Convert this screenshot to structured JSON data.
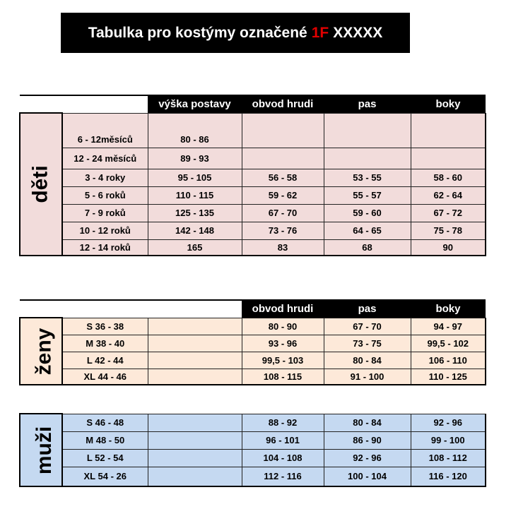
{
  "title": {
    "prefix": "Tabulka pro kostýmy označené",
    "code": "1F",
    "suffix": "XXXXX",
    "code_color": "#e00000"
  },
  "headers": {
    "height": "výška postavy",
    "chest": "obvod hrudi",
    "waist": "pas",
    "hips": "boky"
  },
  "deti": {
    "label": "děti",
    "color": "#f2dcdb",
    "rows": [
      [
        "6 - 12měsíců",
        "80 - 86",
        "",
        "",
        ""
      ],
      [
        "12 - 24 měsíců",
        "89 - 93",
        "",
        "",
        ""
      ],
      [
        "3 - 4 roky",
        "95 - 105",
        "56 - 58",
        "53 - 55",
        "58 - 60"
      ],
      [
        "5 - 6 roků",
        "110 - 115",
        "59 - 62",
        "55 - 57",
        "62 - 64"
      ],
      [
        "7 - 9 roků",
        "125 - 135",
        "67 - 70",
        "59 - 60",
        "67 - 72"
      ],
      [
        "10 - 12 roků",
        "142 - 148",
        "73 - 76",
        "64 - 65",
        "75 - 78"
      ],
      [
        "12 - 14 roků",
        "165",
        "83",
        "68",
        "90"
      ]
    ]
  },
  "zeny": {
    "label": "ženy",
    "color": "#fde9d9",
    "rows": [
      [
        "S 36 - 38",
        "",
        "80 - 90",
        "67 - 70",
        "94 - 97"
      ],
      [
        "M 38 - 40",
        "",
        "93 - 96",
        "73 - 75",
        "99,5 - 102"
      ],
      [
        "L 42 - 44",
        "",
        "99,5 - 103",
        "80 - 84",
        "106 - 110"
      ],
      [
        "XL 44 - 46",
        "",
        "108 - 115",
        "91 - 100",
        "110 - 125"
      ]
    ]
  },
  "muzi": {
    "label": "muži",
    "color": "#c5d9f1",
    "rows": [
      [
        "S 46 - 48",
        "",
        "88 - 92",
        "80 - 84",
        "92 - 96"
      ],
      [
        "M 48 - 50",
        "",
        "96 - 101",
        "86 - 90",
        "99 - 100"
      ],
      [
        "L 52 - 54",
        "",
        "104 - 108",
        "92 - 96",
        "108 - 112"
      ],
      [
        "XL 54 - 26",
        "",
        "112 - 116",
        "100 - 104",
        "116 - 120"
      ]
    ]
  }
}
